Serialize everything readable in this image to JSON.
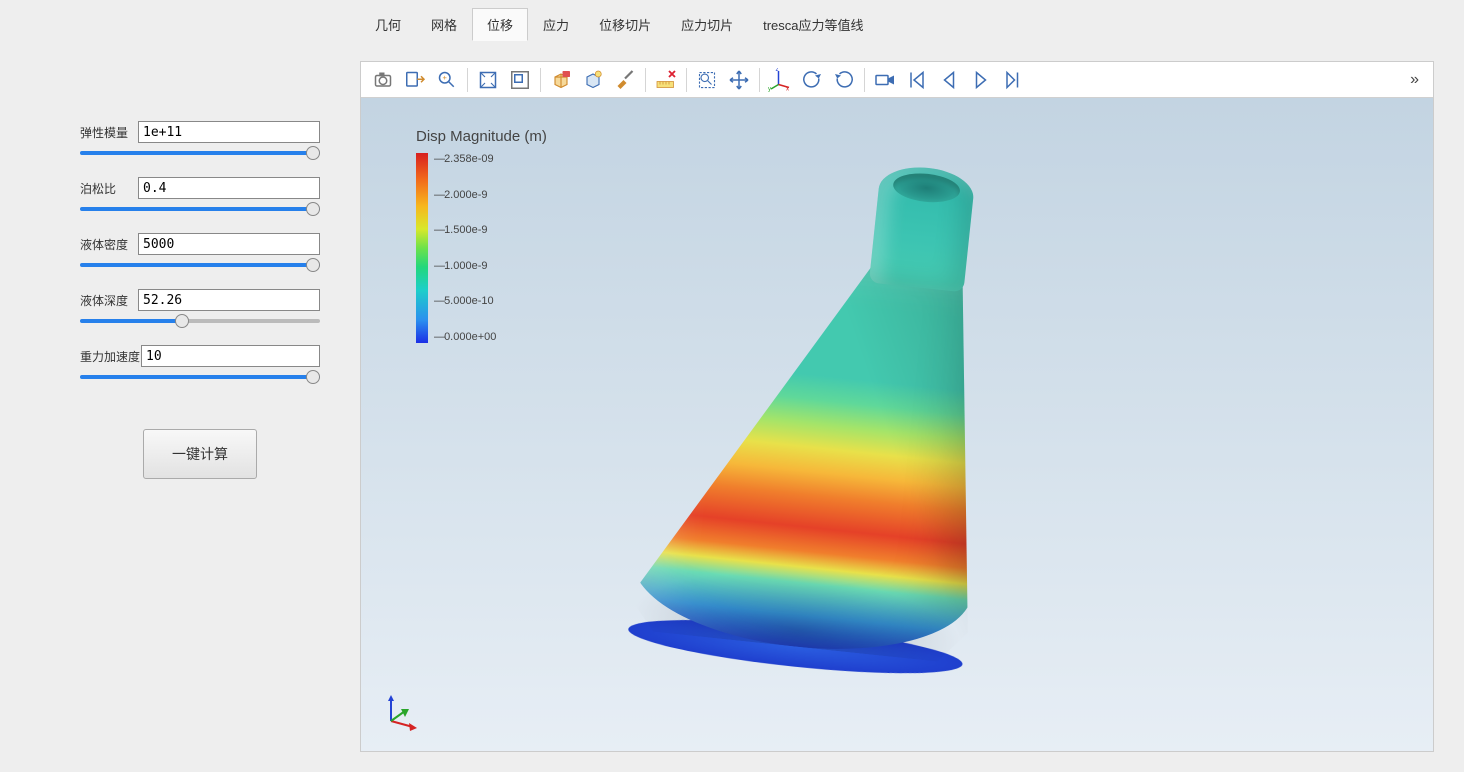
{
  "tabs": {
    "items": [
      "几何",
      "网格",
      "位移",
      "应力",
      "位移切片",
      "应力切片",
      "tresca应力等值线"
    ],
    "active_index": 2
  },
  "params": [
    {
      "key": "elastic_modulus",
      "label": "弹性模量",
      "value": "1e+11",
      "slider_percent": 100
    },
    {
      "key": "poisson_ratio",
      "label": "泊松比",
      "value": "0.4",
      "slider_percent": 100
    },
    {
      "key": "liquid_density",
      "label": "液体密度",
      "value": "5000",
      "slider_percent": 100
    },
    {
      "key": "liquid_depth",
      "label": "液体深度",
      "value": "52.26",
      "slider_percent": 42
    },
    {
      "key": "gravity_accel",
      "label": "重力加速度",
      "value": "10",
      "slider_percent": 100
    }
  ],
  "calc_button": {
    "label": "一键计算"
  },
  "toolbar_buttons": [
    "camera-icon",
    "export-icon",
    "zoom-find-icon",
    "sep",
    "zoom-fit-icon",
    "zoom-window-icon",
    "sep",
    "cube-selection-icon",
    "cube-light-icon",
    "brush-icon",
    "sep",
    "ruler-delete-icon",
    "sep",
    "select-box-icon",
    "pan-icon",
    "sep",
    "axes-xyz-icon",
    "rotate-ccw-icon",
    "rotate-cw-icon",
    "sep",
    "video-icon",
    "go-first-icon",
    "step-back-icon",
    "play-icon",
    "step-forward-icon"
  ],
  "overflow_glyph": "»",
  "viewer": {
    "background_gradient": [
      "#c3d4e2",
      "#d6e2ec",
      "#e7eef5"
    ],
    "legend": {
      "title": "Disp Magnitude (m)",
      "ticks": [
        "2.358e-09",
        "2.000e-9",
        "1.500e-9",
        "1.000e-9",
        "5.000e-10",
        "0.000e+00"
      ],
      "gradient_stops": [
        "#d71f1f",
        "#f26a1b",
        "#f7b71d",
        "#d8e82a",
        "#6de24a",
        "#23d77c",
        "#1ccfc9",
        "#2a8fef",
        "#1c2fe6"
      ]
    },
    "axis_triad": {
      "x_color": "#d52323",
      "y_color": "#2aa52a",
      "z_color": "#2342d5"
    },
    "model": {
      "type": "fea-surface-contour",
      "shape": "conical-flask",
      "tilt_deg": 6,
      "contour_band_colors": [
        "#43c9af",
        "#5fd89a",
        "#a3e46a",
        "#e8e14a",
        "#f6b83a",
        "#f07e2c",
        "#e54128",
        "#3a9ee6",
        "#2046e2"
      ]
    }
  }
}
